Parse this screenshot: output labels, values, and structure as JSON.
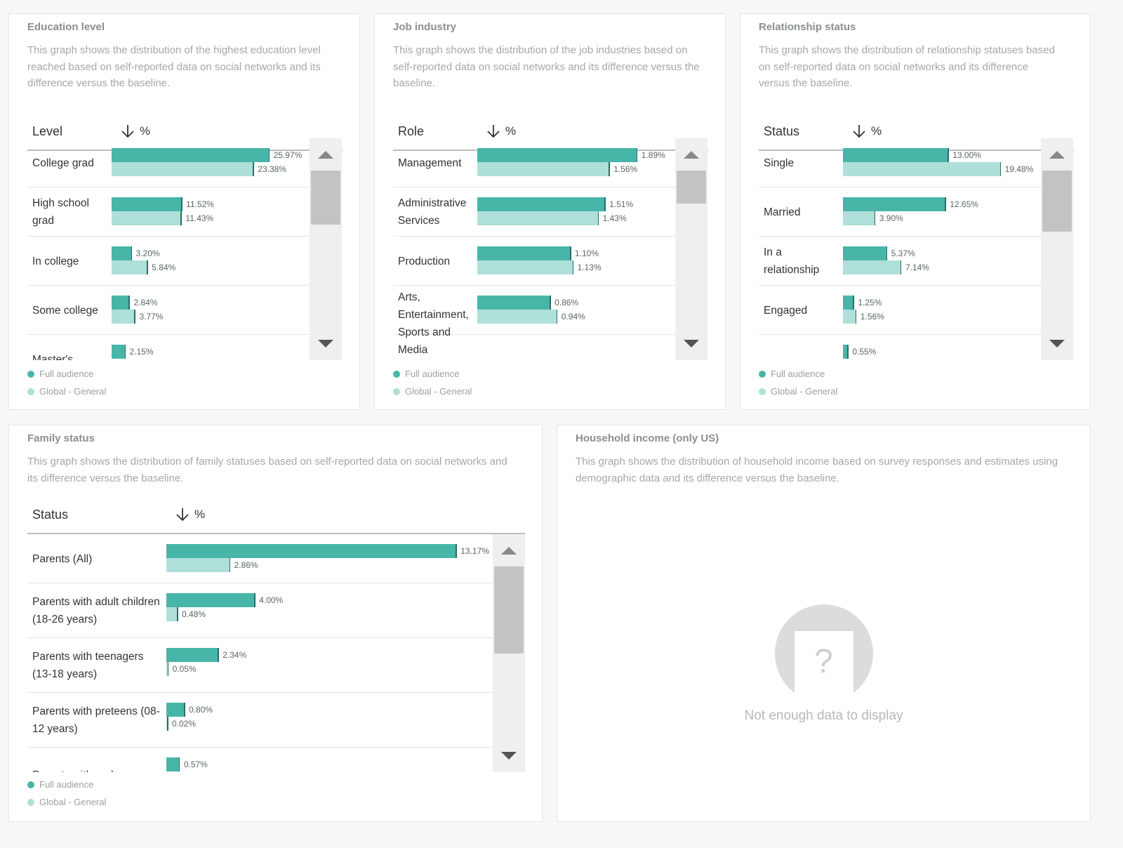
{
  "colors": {
    "full_audience": "#48b5a9",
    "baseline": "#afdfd9",
    "page_background": "#f7f8f8"
  },
  "legend": {
    "full_audience": "Full audience",
    "baseline": "Global - General"
  },
  "cards": {
    "education": {
      "title": "Education level",
      "description": "This graph shows the distribution of the highest education level reached based on self-reported data on social networks and its difference versus the baseline.",
      "column_label": "Level",
      "value_label": "%",
      "scroll_position": 0.0,
      "rows": [
        {
          "label": "College grad",
          "full": 25.97,
          "base": 23.38,
          "full_text": "25.97%",
          "base_text": "23.38%"
        },
        {
          "label": "High school grad",
          "full": 11.52,
          "base": 11.43,
          "full_text": "11.52%",
          "base_text": "11.43%"
        },
        {
          "label": "In college",
          "full": 3.2,
          "base": 5.84,
          "full_text": "3.20%",
          "base_text": "5.84%"
        },
        {
          "label": "Some college",
          "full": 2.84,
          "base": 3.77,
          "full_text": "2.84%",
          "base_text": "3.77%"
        },
        {
          "label": "Master's",
          "full": 2.15,
          "base": null,
          "full_text": "2.15%",
          "base_text": ""
        }
      ]
    },
    "job": {
      "title": "Job industry",
      "description": "This graph shows the distribution of the job industries based on self-reported data on social networks and its difference versus the baseline.",
      "column_label": "Role",
      "value_label": "%",
      "scroll_position": 0.0,
      "rows": [
        {
          "label": "Management",
          "full": 1.89,
          "base": 1.56,
          "full_text": "1.89%",
          "base_text": "1.56%"
        },
        {
          "label": "Administrative Services",
          "full": 1.51,
          "base": 1.43,
          "full_text": "1.51%",
          "base_text": "1.43%"
        },
        {
          "label": "Production",
          "full": 1.1,
          "base": 1.13,
          "full_text": "1.10%",
          "base_text": "1.13%"
        },
        {
          "label": "Arts, Entertainment, Sports and Media",
          "full": 0.86,
          "base": 0.94,
          "full_text": "0.86%",
          "base_text": "0.94%"
        }
      ]
    },
    "relationship": {
      "title": "Relationship status",
      "description": "This graph shows the distribution of relationship statuses based on self-reported data on social networks and its difference versus the baseline.",
      "column_label": "Status",
      "value_label": "%",
      "scroll_position": 0.0,
      "rows": [
        {
          "label": "Single",
          "full": 13.0,
          "base": 19.48,
          "full_text": "13.00%",
          "base_text": "19.48%"
        },
        {
          "label": "Married",
          "full": 12.65,
          "base": 3.9,
          "full_text": "12.65%",
          "base_text": "3.90%"
        },
        {
          "label": "In a relationship",
          "full": 5.37,
          "base": 7.14,
          "full_text": "5.37%",
          "base_text": "7.14%"
        },
        {
          "label": "Engaged",
          "full": 1.25,
          "base": 1.56,
          "full_text": "1.25%",
          "base_text": "1.56%"
        },
        {
          "label": "",
          "full": 0.55,
          "base": null,
          "full_text": "0.55%",
          "base_text": ""
        }
      ]
    },
    "family": {
      "title": "Family status",
      "description": "This graph shows the distribution of family statuses based on self-reported data on social networks and its difference versus the baseline.",
      "column_label": "Status",
      "value_label": "%",
      "scroll_position": 0.0,
      "rows": [
        {
          "label": "Parents (All)",
          "full": 13.17,
          "base": 2.86,
          "full_text": "13.17%",
          "base_text": "2.86%"
        },
        {
          "label": "Parents with adult children (18-26 years)",
          "full": 4.0,
          "base": 0.48,
          "full_text": "4.00%",
          "base_text": "0.48%"
        },
        {
          "label": "Parents with teenagers (13-18 years)",
          "full": 2.34,
          "base": 0.05,
          "full_text": "2.34%",
          "base_text": "0.05%"
        },
        {
          "label": "Parents with preteens (08-12 years)",
          "full": 0.8,
          "base": 0.02,
          "full_text": "0.80%",
          "base_text": "0.02%"
        },
        {
          "label": "Parents with early",
          "full": 0.57,
          "base": null,
          "full_text": "0.57%",
          "base_text": ""
        }
      ]
    },
    "income": {
      "title": "Household income (only US)",
      "description": "This graph shows the distribution of household income based on survey responses and estimates using demographic data and its difference versus the baseline.",
      "empty_text": "Not enough data to display",
      "empty_icon": "question-document-icon"
    }
  }
}
